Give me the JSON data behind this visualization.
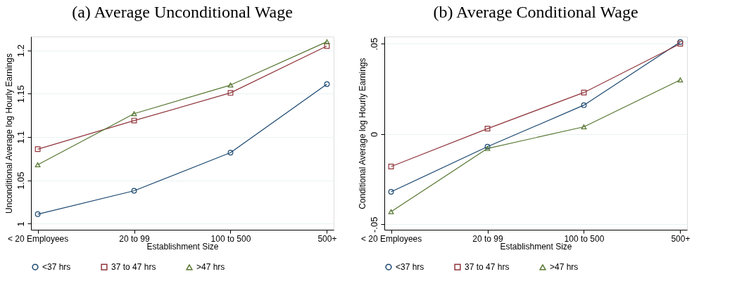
{
  "chart_data": [
    {
      "type": "line",
      "title": "(a) Average Unconditional Wage",
      "xlabel": "Establishment Size",
      "ylabel": "Unconditional Average log Hourly Earnings",
      "categories": [
        "< 20 Employees",
        "20 to 99",
        "100 to 500",
        "500+"
      ],
      "series": [
        {
          "name": "<37 hrs",
          "color": "#1a476f",
          "marker": "circle",
          "values": [
            1.011,
            1.038,
            1.082,
            1.161
          ]
        },
        {
          "name": "37 to 47 hrs",
          "color": "#90353b",
          "marker": "square",
          "values": [
            1.086,
            1.119,
            1.151,
            1.205
          ]
        },
        {
          "name": ">47 hrs",
          "color": "#55752f",
          "marker": "triangle",
          "values": [
            1.068,
            1.127,
            1.16,
            1.21
          ]
        }
      ],
      "ylim": [
        0.993,
        1.216
      ],
      "yticks": [
        1,
        1.05,
        1.1,
        1.15,
        1.2
      ],
      "grid": "y",
      "legend": "bottom"
    },
    {
      "type": "line",
      "title": "(b) Average Conditional Wage",
      "xlabel": "Establishment Size",
      "ylabel": "Conditional Average log Hourly Earnings",
      "categories": [
        "< 20 Employees",
        "20 to 99",
        "100 to 500",
        "500+"
      ],
      "series": [
        {
          "name": "<37 hrs",
          "color": "#1a476f",
          "marker": "circle",
          "values": [
            -0.032,
            -0.007,
            0.016,
            0.051
          ]
        },
        {
          "name": "37 to 47 hrs",
          "color": "#90353b",
          "marker": "square",
          "values": [
            -0.018,
            0.003,
            0.023,
            0.05
          ]
        },
        {
          "name": ">47 hrs",
          "color": "#55752f",
          "marker": "triangle",
          "values": [
            -0.043,
            -0.008,
            0.004,
            0.03
          ]
        }
      ],
      "ylim": [
        -0.053,
        0.054
      ],
      "yticks": [
        {
          "value": -0.05,
          "label": "-.05"
        },
        0,
        {
          "value": 0.05,
          "label": ".05"
        }
      ],
      "grid": "y",
      "legend": "bottom"
    }
  ]
}
